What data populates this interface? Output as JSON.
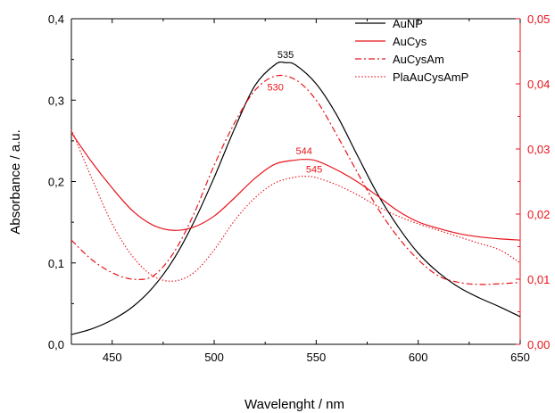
{
  "chart_data": {
    "type": "line",
    "title": "",
    "xlabel": "Wavelenght / nm",
    "ylabel": "Absorbance / a.u.",
    "y2label": "",
    "xlim": [
      430,
      650
    ],
    "ylim": [
      0.0,
      0.4
    ],
    "y2lim": [
      0.0,
      0.05
    ],
    "x_ticks": [
      "450",
      "500",
      "550",
      "600",
      "650"
    ],
    "y_ticks": [
      "0,0",
      "0,1",
      "0,2",
      "0,3",
      "0,4"
    ],
    "y2_ticks": [
      "0,00",
      "0,01",
      "0,02",
      "0,03",
      "0,04",
      "0,05"
    ],
    "grid": false,
    "legend_position": "top-right",
    "colors": {
      "black": "#000000",
      "red": "#e8141b"
    },
    "series": [
      {
        "name": "AuNP",
        "axis": "left",
        "color": "#000000",
        "dash": "solid",
        "x": [
          430,
          440,
          450,
          460,
          470,
          480,
          490,
          500,
          510,
          520,
          530,
          535,
          540,
          550,
          560,
          570,
          580,
          590,
          600,
          610,
          620,
          630,
          640,
          650
        ],
        "y": [
          0.012,
          0.019,
          0.03,
          0.046,
          0.07,
          0.104,
          0.15,
          0.205,
          0.265,
          0.318,
          0.344,
          0.346,
          0.343,
          0.32,
          0.282,
          0.233,
          0.185,
          0.145,
          0.112,
          0.088,
          0.07,
          0.057,
          0.046,
          0.034
        ]
      },
      {
        "name": "AuCys",
        "axis": "right",
        "color": "#e8141b",
        "dash": "solid",
        "x": [
          430,
          440,
          450,
          460,
          470,
          480,
          490,
          500,
          510,
          520,
          530,
          540,
          544,
          550,
          560,
          570,
          580,
          590,
          600,
          610,
          620,
          630,
          640,
          650
        ],
        "y": [
          0.0325,
          0.028,
          0.024,
          0.0205,
          0.0183,
          0.0175,
          0.018,
          0.0197,
          0.0225,
          0.0255,
          0.0277,
          0.0283,
          0.0284,
          0.0282,
          0.0268,
          0.025,
          0.0228,
          0.0205,
          0.0188,
          0.0178,
          0.017,
          0.0165,
          0.0162,
          0.016
        ]
      },
      {
        "name": "AuCysAm",
        "axis": "right",
        "color": "#e8141b",
        "dash": "dashdot",
        "x": [
          430,
          440,
          450,
          460,
          470,
          480,
          490,
          500,
          510,
          520,
          530,
          540,
          550,
          560,
          570,
          580,
          590,
          600,
          610,
          620,
          630,
          640,
          650
        ],
        "y": [
          0.016,
          0.013,
          0.011,
          0.01,
          0.0105,
          0.014,
          0.02,
          0.0275,
          0.034,
          0.039,
          0.0412,
          0.0406,
          0.0375,
          0.0322,
          0.0265,
          0.021,
          0.0165,
          0.013,
          0.0105,
          0.0095,
          0.0092,
          0.0093,
          0.0095
        ]
      },
      {
        "name": "PlaAuCysAmP",
        "axis": "right",
        "color": "#e8141b",
        "dash": "dotted",
        "x": [
          430,
          440,
          450,
          460,
          470,
          480,
          490,
          500,
          510,
          520,
          530,
          540,
          545,
          550,
          560,
          570,
          580,
          590,
          600,
          610,
          620,
          630,
          640,
          650
        ],
        "y": [
          0.033,
          0.0255,
          0.0185,
          0.0135,
          0.0105,
          0.0097,
          0.011,
          0.0145,
          0.019,
          0.0225,
          0.0248,
          0.0257,
          0.0258,
          0.0256,
          0.0245,
          0.023,
          0.0212,
          0.0197,
          0.0185,
          0.0175,
          0.0165,
          0.0155,
          0.0145,
          0.0125
        ]
      }
    ],
    "annotations": [
      {
        "text": "535",
        "x": 535,
        "y": 0.352,
        "axis": "left",
        "color": "#000000"
      },
      {
        "text": "530",
        "x": 530,
        "y": 0.039,
        "axis": "right",
        "color": "#e8141b"
      },
      {
        "text": "544",
        "x": 544,
        "y": 0.0292,
        "axis": "right",
        "color": "#e8141b"
      },
      {
        "text": "545",
        "x": 549,
        "y": 0.0264,
        "axis": "right",
        "color": "#e8141b"
      }
    ]
  }
}
